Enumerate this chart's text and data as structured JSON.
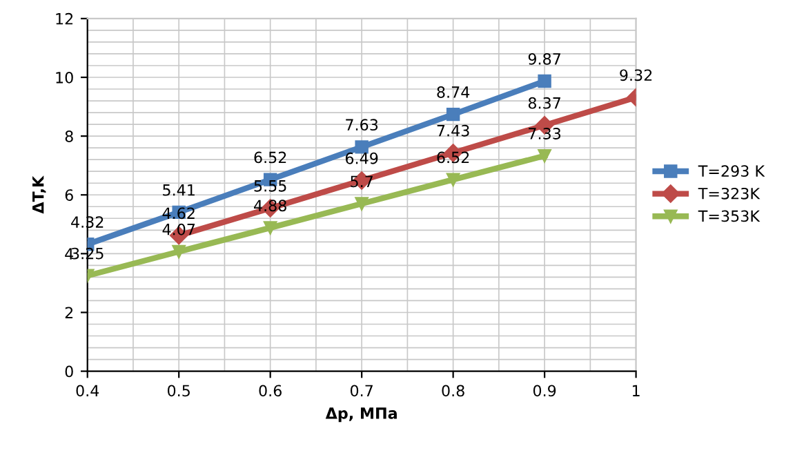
{
  "chart_data": {
    "type": "line",
    "xlabel": "Δp, МПа",
    "ylabel": "ΔT,K",
    "xlim": [
      0.4,
      1
    ],
    "xticks": [
      0.4,
      0.5,
      0.6,
      0.7,
      0.8,
      0.9,
      1
    ],
    "ylim": [
      0,
      12
    ],
    "yticks": [
      0,
      2,
      4,
      6,
      8,
      10,
      12
    ],
    "grid": true,
    "legend": "right",
    "data_labels": true,
    "series": [
      {
        "name": "T=293 K",
        "color": "#4a7ebb",
        "marker": "square",
        "x": [
          0.4,
          0.5,
          0.6,
          0.7,
          0.8,
          0.9
        ],
        "values": [
          4.32,
          5.41,
          6.52,
          7.63,
          8.74,
          9.87
        ]
      },
      {
        "name": "T=323K",
        "color": "#be4b48",
        "marker": "diamond",
        "x": [
          0.5,
          0.6,
          0.7,
          0.8,
          0.9,
          1
        ],
        "values": [
          4.62,
          5.55,
          6.49,
          7.43,
          8.37,
          9.32
        ]
      },
      {
        "name": "T=353K",
        "color": "#98b954",
        "marker": "triangle",
        "x": [
          0.4,
          0.5,
          0.6,
          0.7,
          0.8,
          0.9
        ],
        "values": [
          3.25,
          4.07,
          4.88,
          5.7,
          6.52,
          7.33
        ]
      }
    ]
  }
}
